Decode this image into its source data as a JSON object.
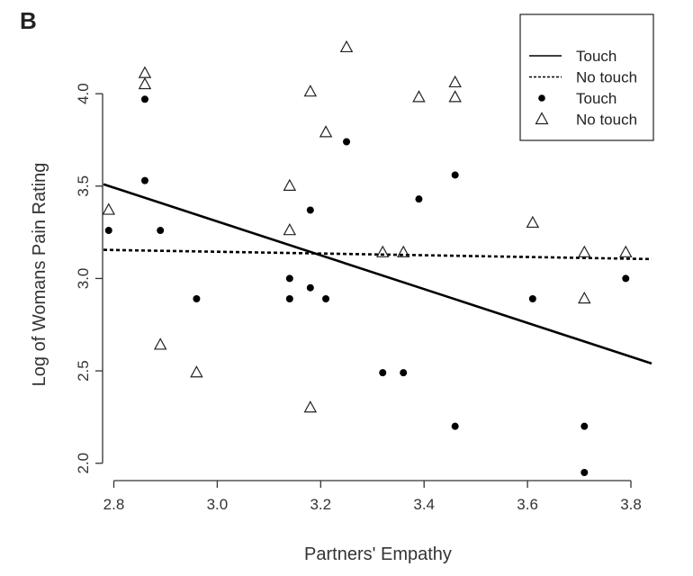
{
  "panel_label": "B",
  "chart_data": {
    "type": "scatter",
    "title": "",
    "xlabel": "Partners' Empathy",
    "ylabel": "Log of Womans Pain Rating",
    "xlim": [
      2.78,
      3.84
    ],
    "ylim": [
      1.95,
      4.4
    ],
    "xticks": [
      2.8,
      3.0,
      3.2,
      3.4,
      3.6,
      3.8
    ],
    "xtick_labels": [
      "2.8",
      "3.0",
      "3.2",
      "3.4",
      "3.6",
      "3.8"
    ],
    "yticks": [
      2.0,
      2.5,
      3.0,
      3.5,
      4.0
    ],
    "ytick_labels": [
      "2.0",
      "2.5",
      "3.0",
      "3.5",
      "4.0"
    ],
    "grid": false,
    "legend_position": "top-right",
    "legend": [
      {
        "label": "Touch",
        "marker": "solid-line"
      },
      {
        "label": "No touch",
        "marker": "dotted-line"
      },
      {
        "label": "Touch",
        "marker": "filled-circle"
      },
      {
        "label": "No touch",
        "marker": "open-triangle"
      }
    ],
    "series": [
      {
        "name": "Touch",
        "marker": "filled-circle",
        "x": [
          2.79,
          2.86,
          2.86,
          2.89,
          2.96,
          3.14,
          3.14,
          3.18,
          3.18,
          3.21,
          3.25,
          3.32,
          3.36,
          3.39,
          3.46,
          3.46,
          3.61,
          3.71,
          3.71,
          3.79
        ],
        "y": [
          3.26,
          3.97,
          3.53,
          3.26,
          2.89,
          3.0,
          2.89,
          3.37,
          2.95,
          2.89,
          3.74,
          2.49,
          2.49,
          3.43,
          3.56,
          2.2,
          2.89,
          2.2,
          1.95,
          3.0
        ]
      },
      {
        "name": "No touch",
        "marker": "open-triangle",
        "x": [
          2.79,
          2.86,
          2.86,
          2.89,
          2.96,
          3.14,
          3.14,
          3.18,
          3.18,
          3.21,
          3.25,
          3.32,
          3.36,
          3.39,
          3.46,
          3.46,
          3.61,
          3.71,
          3.71,
          3.79
        ],
        "y": [
          3.37,
          4.11,
          4.05,
          2.64,
          2.49,
          3.5,
          3.26,
          4.01,
          2.3,
          3.79,
          4.25,
          3.14,
          3.14,
          3.98,
          4.06,
          3.98,
          3.3,
          3.14,
          2.89,
          3.14
        ]
      }
    ],
    "fit_lines": [
      {
        "name": "Touch",
        "style": "solid",
        "x": [
          2.78,
          3.84
        ],
        "y": [
          3.51,
          2.54
        ]
      },
      {
        "name": "No touch",
        "style": "dotted",
        "x": [
          2.78,
          3.84
        ],
        "y": [
          3.155,
          3.105
        ]
      }
    ]
  }
}
